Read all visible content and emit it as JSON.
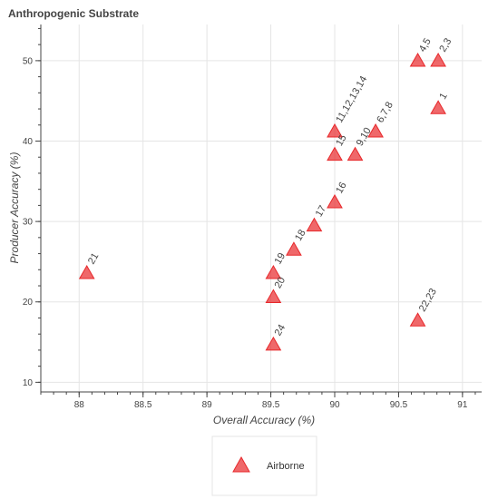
{
  "chart_data": {
    "type": "scatter",
    "title": "Anthropogenic Substrate",
    "xlabel": "Overall Accuracy (%)",
    "ylabel": "Producer Accuracy (%)",
    "xlim": [
      87.7,
      91.15
    ],
    "ylim": [
      8.8,
      54.5
    ],
    "x_ticks": [
      88,
      88.5,
      89,
      89.5,
      90,
      90.5,
      91
    ],
    "x_tick_labels": [
      "88",
      "88.5",
      "89",
      "89.5",
      "90",
      "90.5",
      "91"
    ],
    "y_ticks": [
      10,
      20,
      30,
      40,
      50
    ],
    "y_tick_labels": [
      "10",
      "20",
      "30",
      "40",
      "50"
    ],
    "grid": true,
    "legend_placement": "bottom-center",
    "marker_color": "#e8282b",
    "series": [
      {
        "name": "Airborne",
        "points": [
          {
            "x": 90.81,
            "y": 44.2,
            "label": "1"
          },
          {
            "x": 90.81,
            "y": 50.1,
            "label": "2,3"
          },
          {
            "x": 90.65,
            "y": 50.1,
            "label": "4,5"
          },
          {
            "x": 90.32,
            "y": 41.3,
            "label": "6,7,8"
          },
          {
            "x": 90.16,
            "y": 38.4,
            "label": "9,10"
          },
          {
            "x": 90.0,
            "y": 41.3,
            "label": "11,12,13,14"
          },
          {
            "x": 90.0,
            "y": 38.4,
            "label": "15"
          },
          {
            "x": 90.0,
            "y": 32.5,
            "label": "16"
          },
          {
            "x": 89.84,
            "y": 29.6,
            "label": "17"
          },
          {
            "x": 89.68,
            "y": 26.6,
            "label": "18"
          },
          {
            "x": 89.52,
            "y": 23.7,
            "label": "19"
          },
          {
            "x": 89.52,
            "y": 20.7,
            "label": "20"
          },
          {
            "x": 88.06,
            "y": 23.7,
            "label": "21"
          },
          {
            "x": 90.65,
            "y": 17.8,
            "label": "22,23"
          },
          {
            "x": 89.52,
            "y": 14.8,
            "label": "24"
          }
        ]
      }
    ]
  }
}
